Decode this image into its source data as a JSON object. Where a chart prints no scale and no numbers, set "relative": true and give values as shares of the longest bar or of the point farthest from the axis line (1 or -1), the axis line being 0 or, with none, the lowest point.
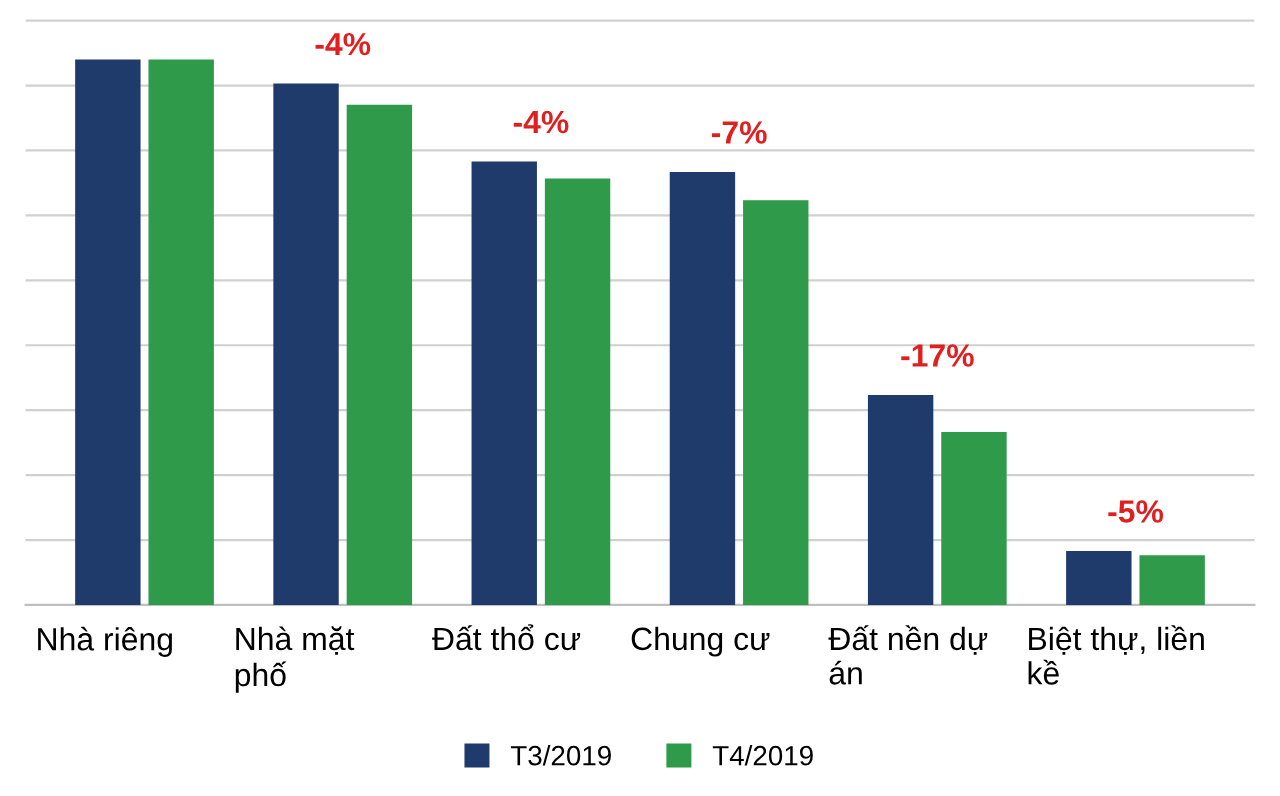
{
  "chart_data": {
    "type": "bar",
    "relative": true,
    "categories": [
      "Nhà riêng",
      "Nhà mặt\nphố",
      "Đất thổ cư",
      "Chung cư",
      "Đất nền dự\nán",
      "Biệt thự, liền\nkề"
    ],
    "series": [
      {
        "name": "T3/2019",
        "color": "#1f3b6b",
        "values": [
          1.0,
          0.956,
          0.813,
          0.794,
          0.385,
          0.099
        ]
      },
      {
        "name": "T4/2019",
        "color": "#2f9a4a",
        "values": [
          1.0,
          0.917,
          0.782,
          0.742,
          0.317,
          0.091
        ]
      }
    ],
    "annotations": [
      {
        "text": "-4%",
        "x": "Nhà mặt\nphố",
        "y": 0.956
      },
      {
        "text": "-4%",
        "x": "Đất thổ cư",
        "y": 0.813
      },
      {
        "text": "-7%",
        "x": "Chung cư",
        "y": 0.794
      },
      {
        "text": "-17%",
        "x": "Đất nền dự\nán",
        "y": 0.385
      },
      {
        "text": "-5%",
        "x": "Biệt thự, liền\nkề",
        "y": 0.099
      }
    ],
    "grid": "y",
    "legend": "bottom"
  }
}
